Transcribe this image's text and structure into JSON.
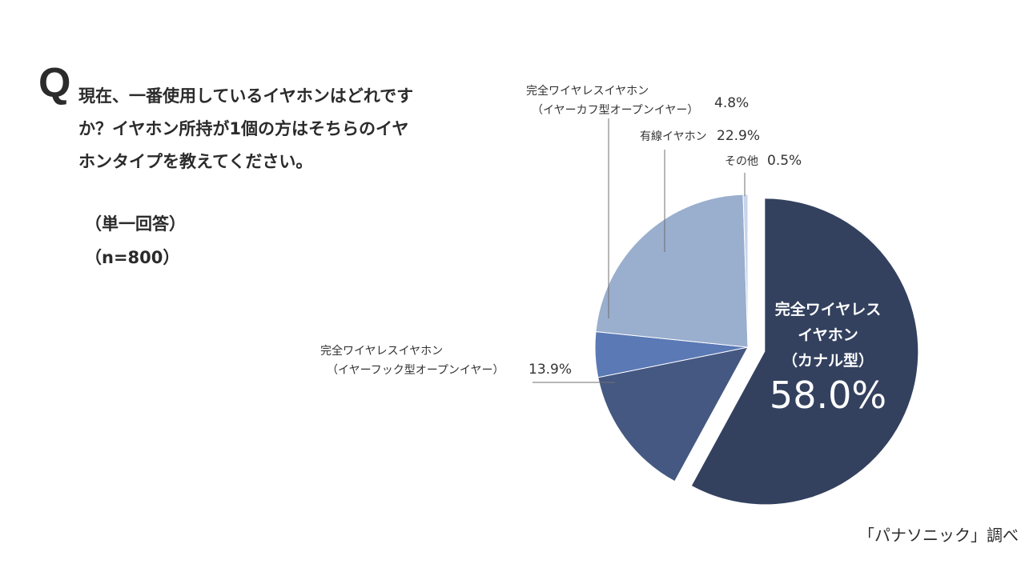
{
  "question": {
    "mark": "Q",
    "text": "現在、一番使用しているイヤホンはどれですか？イヤホン所持が1個の方はそちらのイヤホンタイプを教えてください。",
    "note_answer": "（単一回答）",
    "note_n": "（n=800）"
  },
  "source": "「パナソニック」調べ",
  "chart_data": {
    "type": "pie",
    "title": "",
    "slices": [
      {
        "label_lines": [
          "完全ワイヤレス",
          "イヤホン",
          "（カナル型）"
        ],
        "value": 58.0,
        "value_label": "58.0%",
        "color": "#33415f",
        "exploded": true
      },
      {
        "label_lines": [
          "完全ワイヤレスイヤホン",
          "（イヤーフック型オープンイヤー）"
        ],
        "value": 13.9,
        "value_label": "13.9%",
        "color": "#455882"
      },
      {
        "label_lines": [
          "完全ワイヤレスイヤホン",
          "（イヤーカフ型オープンイヤー）"
        ],
        "value": 4.8,
        "value_label": "4.8%",
        "color": "#5a79b5"
      },
      {
        "label_lines": [
          "有線イヤホン"
        ],
        "value": 22.9,
        "value_label": "22.9%",
        "color": "#9aaece"
      },
      {
        "label_lines": [
          "その他"
        ],
        "value": 0.5,
        "value_label": "0.5%",
        "color": "#c7d4ea"
      }
    ]
  }
}
